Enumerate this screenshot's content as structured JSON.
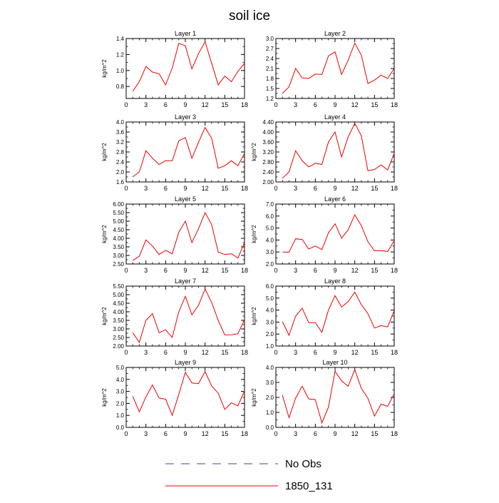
{
  "figure": {
    "title": "soil ice",
    "legend": [
      {
        "label": "No Obs",
        "color": "#3344cc",
        "style": "dashed"
      },
      {
        "label": "1850_131",
        "color": "#ee0000",
        "style": "solid"
      }
    ]
  },
  "chart_data": [
    {
      "type": "line",
      "title": "Layer 1",
      "xlabel": "",
      "ylabel": "kg/m^2",
      "xlim": [
        0,
        18
      ],
      "ylim": [
        0.65,
        1.4
      ],
      "xticks": [
        0,
        3,
        6,
        9,
        12,
        15,
        18
      ],
      "yticks": [
        0.8,
        1.0,
        1.2,
        1.4
      ],
      "ytick_labels": [
        "0.8",
        "1.0",
        "1.2",
        "1.4"
      ],
      "x": [
        1,
        2,
        3,
        4,
        5,
        6,
        7,
        8,
        9,
        10,
        11,
        12,
        13,
        14,
        15,
        16,
        17,
        18
      ],
      "series": [
        {
          "name": "1850_131",
          "color": "#ee0000",
          "values": [
            0.74,
            0.86,
            1.05,
            0.98,
            0.96,
            0.82,
            1.03,
            1.34,
            1.31,
            1.02,
            1.21,
            1.36,
            1.09,
            0.82,
            0.93,
            0.86,
            0.99,
            1.09
          ]
        }
      ]
    },
    {
      "type": "line",
      "title": "Layer 2",
      "xlabel": "",
      "ylabel": "",
      "xlim": [
        0,
        18
      ],
      "ylim": [
        1.2,
        3.0
      ],
      "xticks": [
        0,
        3,
        6,
        9,
        12,
        15,
        18
      ],
      "yticks": [
        1.2,
        1.5,
        1.8,
        2.1,
        2.4,
        2.7,
        3.0
      ],
      "ytick_labels": [
        "1.2",
        "1.5",
        "1.8",
        "2.1",
        "2.4",
        "2.7",
        "3.0"
      ],
      "x": [
        1,
        2,
        3,
        4,
        5,
        6,
        7,
        8,
        9,
        10,
        11,
        12,
        13,
        14,
        15,
        16,
        17,
        18
      ],
      "series": [
        {
          "name": "1850_131",
          "color": "#ee0000",
          "values": [
            1.35,
            1.55,
            2.1,
            1.82,
            1.8,
            1.93,
            1.92,
            2.48,
            2.6,
            1.92,
            2.35,
            2.86,
            2.5,
            1.65,
            1.75,
            1.9,
            1.8,
            2.1
          ]
        }
      ]
    },
    {
      "type": "line",
      "title": "Layer 3",
      "xlabel": "",
      "ylabel": "kg/m^2",
      "xlim": [
        0,
        18
      ],
      "ylim": [
        1.6,
        4.0
      ],
      "xticks": [
        0,
        3,
        6,
        9,
        12,
        15,
        18
      ],
      "yticks": [
        1.6,
        2.0,
        2.4,
        2.8,
        3.2,
        3.6,
        4.0
      ],
      "ytick_labels": [
        "1.6",
        "2.0",
        "2.4",
        "2.8",
        "3.2",
        "3.6",
        "4.0"
      ],
      "x": [
        1,
        2,
        3,
        4,
        5,
        6,
        7,
        8,
        9,
        10,
        11,
        12,
        13,
        14,
        15,
        16,
        17,
        18
      ],
      "series": [
        {
          "name": "1850_131",
          "color": "#ee0000",
          "values": [
            1.8,
            2.0,
            2.85,
            2.55,
            2.3,
            2.45,
            2.45,
            3.25,
            3.38,
            2.55,
            3.18,
            3.78,
            3.35,
            2.15,
            2.25,
            2.45,
            2.25,
            2.75
          ]
        }
      ]
    },
    {
      "type": "line",
      "title": "Layer 4",
      "xlabel": "",
      "ylabel": "kg/m^2",
      "xlim": [
        0,
        18
      ],
      "ylim": [
        2.0,
        4.4
      ],
      "xticks": [
        0,
        3,
        6,
        9,
        12,
        15,
        18
      ],
      "yticks": [
        2.0,
        2.4,
        2.8,
        3.2,
        3.6,
        4.0,
        4.4
      ],
      "ytick_labels": [
        "2.00",
        "2.40",
        "2.80",
        "3.20",
        "3.60",
        "4.00",
        "4.40"
      ],
      "x": [
        1,
        2,
        3,
        4,
        5,
        6,
        7,
        8,
        9,
        10,
        11,
        12,
        13,
        14,
        15,
        16,
        17,
        18
      ],
      "series": [
        {
          "name": "1850_131",
          "color": "#ee0000",
          "values": [
            2.15,
            2.4,
            3.25,
            2.85,
            2.6,
            2.75,
            2.7,
            3.6,
            4.0,
            3.0,
            3.8,
            4.35,
            3.85,
            2.45,
            2.5,
            2.68,
            2.48,
            3.15
          ]
        }
      ]
    },
    {
      "type": "line",
      "title": "Layer 5",
      "xlabel": "",
      "ylabel": "kg/m^2",
      "xlim": [
        0,
        18
      ],
      "ylim": [
        2.5,
        6.0
      ],
      "xticks": [
        0,
        3,
        6,
        9,
        12,
        15,
        18
      ],
      "yticks": [
        2.5,
        3.0,
        3.5,
        4.0,
        4.5,
        5.0,
        5.5,
        6.0
      ],
      "ytick_labels": [
        "2.50",
        "3.00",
        "3.50",
        "4.00",
        "4.50",
        "5.00",
        "5.50",
        "6.00"
      ],
      "x": [
        1,
        2,
        3,
        4,
        5,
        6,
        7,
        8,
        9,
        10,
        11,
        12,
        13,
        14,
        15,
        16,
        17,
        18
      ],
      "series": [
        {
          "name": "1850_131",
          "color": "#ee0000",
          "values": [
            2.7,
            2.95,
            3.9,
            3.55,
            3.05,
            3.3,
            3.1,
            4.35,
            5.0,
            3.75,
            4.55,
            5.5,
            4.8,
            3.2,
            3.05,
            3.1,
            2.85,
            3.75
          ]
        }
      ]
    },
    {
      "type": "line",
      "title": "Layer 6",
      "xlabel": "",
      "ylabel": "kg/m^2",
      "xlim": [
        0,
        18
      ],
      "ylim": [
        2.0,
        7.0
      ],
      "xticks": [
        0,
        3,
        6,
        9,
        12,
        15,
        18
      ],
      "yticks": [
        2.0,
        3.0,
        4.0,
        5.0,
        6.0,
        7.0
      ],
      "ytick_labels": [
        "2.0",
        "3.0",
        "4.0",
        "5.0",
        "6.0",
        "7.0"
      ],
      "x": [
        1,
        2,
        3,
        4,
        5,
        6,
        7,
        8,
        9,
        10,
        11,
        12,
        13,
        14,
        15,
        16,
        17,
        18
      ],
      "series": [
        {
          "name": "1850_131",
          "color": "#ee0000",
          "values": [
            3.0,
            2.98,
            4.1,
            4.05,
            3.25,
            3.5,
            3.2,
            4.6,
            5.35,
            4.15,
            4.85,
            6.1,
            5.2,
            3.85,
            3.1,
            3.12,
            3.05,
            3.95
          ]
        }
      ]
    },
    {
      "type": "line",
      "title": "Layer 7",
      "xlabel": "",
      "ylabel": "kg/m^2",
      "xlim": [
        0,
        18
      ],
      "ylim": [
        2.0,
        5.5
      ],
      "xticks": [
        0,
        3,
        6,
        9,
        12,
        15,
        18
      ],
      "yticks": [
        2.0,
        2.5,
        3.0,
        3.5,
        4.0,
        4.5,
        5.0,
        5.5
      ],
      "ytick_labels": [
        "2.00",
        "2.50",
        "3.00",
        "3.50",
        "4.00",
        "4.50",
        "5.00",
        "5.50"
      ],
      "x": [
        1,
        2,
        3,
        4,
        5,
        6,
        7,
        8,
        9,
        10,
        11,
        12,
        13,
        14,
        15,
        16,
        17,
        18
      ],
      "series": [
        {
          "name": "1850_131",
          "color": "#ee0000",
          "values": [
            2.78,
            2.22,
            3.5,
            3.9,
            2.78,
            2.95,
            2.5,
            4.0,
            4.9,
            3.82,
            4.38,
            5.32,
            4.55,
            3.5,
            2.65,
            2.66,
            2.72,
            3.55
          ]
        }
      ]
    },
    {
      "type": "line",
      "title": "Layer 8",
      "xlabel": "",
      "ylabel": "kg/m^2",
      "xlim": [
        0,
        18
      ],
      "ylim": [
        1.0,
        6.0
      ],
      "xticks": [
        0,
        3,
        6,
        9,
        12,
        15,
        18
      ],
      "yticks": [
        1.0,
        2.0,
        3.0,
        4.0,
        5.0,
        6.0
      ],
      "ytick_labels": [
        "1.0",
        "2.0",
        "3.0",
        "4.0",
        "5.0",
        "6.0"
      ],
      "x": [
        1,
        2,
        3,
        4,
        5,
        6,
        7,
        8,
        9,
        10,
        11,
        12,
        13,
        14,
        15,
        16,
        17,
        18
      ],
      "series": [
        {
          "name": "1850_131",
          "color": "#ee0000",
          "values": [
            3.05,
            1.9,
            3.5,
            4.15,
            2.95,
            2.95,
            2.15,
            4.0,
            5.2,
            4.25,
            4.7,
            5.5,
            4.45,
            3.7,
            2.5,
            2.7,
            2.6,
            3.95
          ]
        }
      ]
    },
    {
      "type": "line",
      "title": "Layer 9",
      "xlabel": "",
      "ylabel": "kg/m^2",
      "xlim": [
        0,
        18
      ],
      "ylim": [
        0.0,
        5.0
      ],
      "xticks": [
        0,
        3,
        6,
        9,
        12,
        15,
        18
      ],
      "yticks": [
        0.0,
        1.0,
        2.0,
        3.0,
        4.0,
        5.0
      ],
      "ytick_labels": [
        "0.0",
        "1.0",
        "2.0",
        "3.0",
        "4.0",
        "5.0"
      ],
      "x": [
        1,
        2,
        3,
        4,
        5,
        6,
        7,
        8,
        9,
        10,
        11,
        12,
        13,
        14,
        15,
        16,
        17,
        18
      ],
      "series": [
        {
          "name": "1850_131",
          "color": "#ee0000",
          "values": [
            2.6,
            1.3,
            2.55,
            3.55,
            2.45,
            2.35,
            1.0,
            2.75,
            4.6,
            3.7,
            3.65,
            4.65,
            3.45,
            2.85,
            1.5,
            2.05,
            1.8,
            3.05
          ]
        }
      ]
    },
    {
      "type": "line",
      "title": "Layer 10",
      "xlabel": "",
      "ylabel": "kg/m^2",
      "xlim": [
        0,
        18
      ],
      "ylim": [
        0.0,
        4.0
      ],
      "xticks": [
        0,
        3,
        6,
        9,
        12,
        15,
        18
      ],
      "yticks": [
        0.0,
        1.0,
        2.0,
        3.0,
        4.0
      ],
      "ytick_labels": [
        "0.0",
        "1.0",
        "2.0",
        "3.0",
        "4.0"
      ],
      "x": [
        1,
        2,
        3,
        4,
        5,
        6,
        7,
        8,
        9,
        10,
        11,
        12,
        13,
        14,
        15,
        16,
        17,
        18
      ],
      "series": [
        {
          "name": "1850_131",
          "color": "#ee0000",
          "values": [
            2.15,
            0.65,
            1.95,
            2.75,
            1.9,
            1.85,
            0.3,
            1.35,
            3.75,
            3.1,
            2.75,
            3.85,
            2.6,
            1.95,
            0.75,
            1.55,
            1.4,
            2.25
          ]
        }
      ]
    }
  ]
}
